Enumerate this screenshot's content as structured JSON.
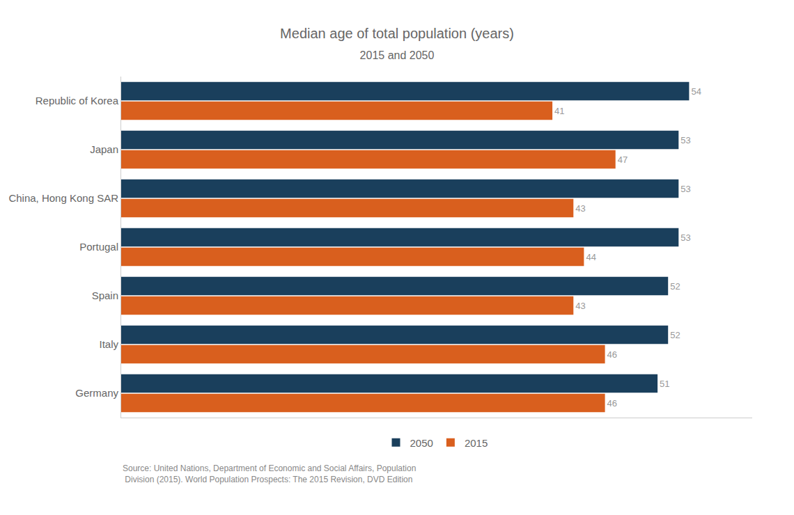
{
  "chart_data": {
    "type": "bar",
    "orientation": "horizontal",
    "title": "Median age of total population (years)",
    "subtitle": "2015 and 2050",
    "categories": [
      "Republic of Korea",
      "Japan",
      "China, Hong Kong SAR",
      "Portugal",
      "Spain",
      "Italy",
      "Germany"
    ],
    "series": [
      {
        "name": "2050",
        "color": "#1a3f5c",
        "values": [
          54,
          53,
          53,
          53,
          52,
          52,
          51
        ]
      },
      {
        "name": "2015",
        "color": "#d95f1e",
        "values": [
          41,
          47,
          43,
          44,
          43,
          46,
          46
        ]
      }
    ],
    "xlim": [
      0,
      60
    ],
    "data_labels": true,
    "tick_labels": "y",
    "grid": false,
    "legend": "bottom",
    "annotations": [
      "Source: United Nations, Department of Economic and Social Affairs, Population\n Division (2015). World Population Prospects: The 2015 Revision, DVD Edition"
    ]
  }
}
